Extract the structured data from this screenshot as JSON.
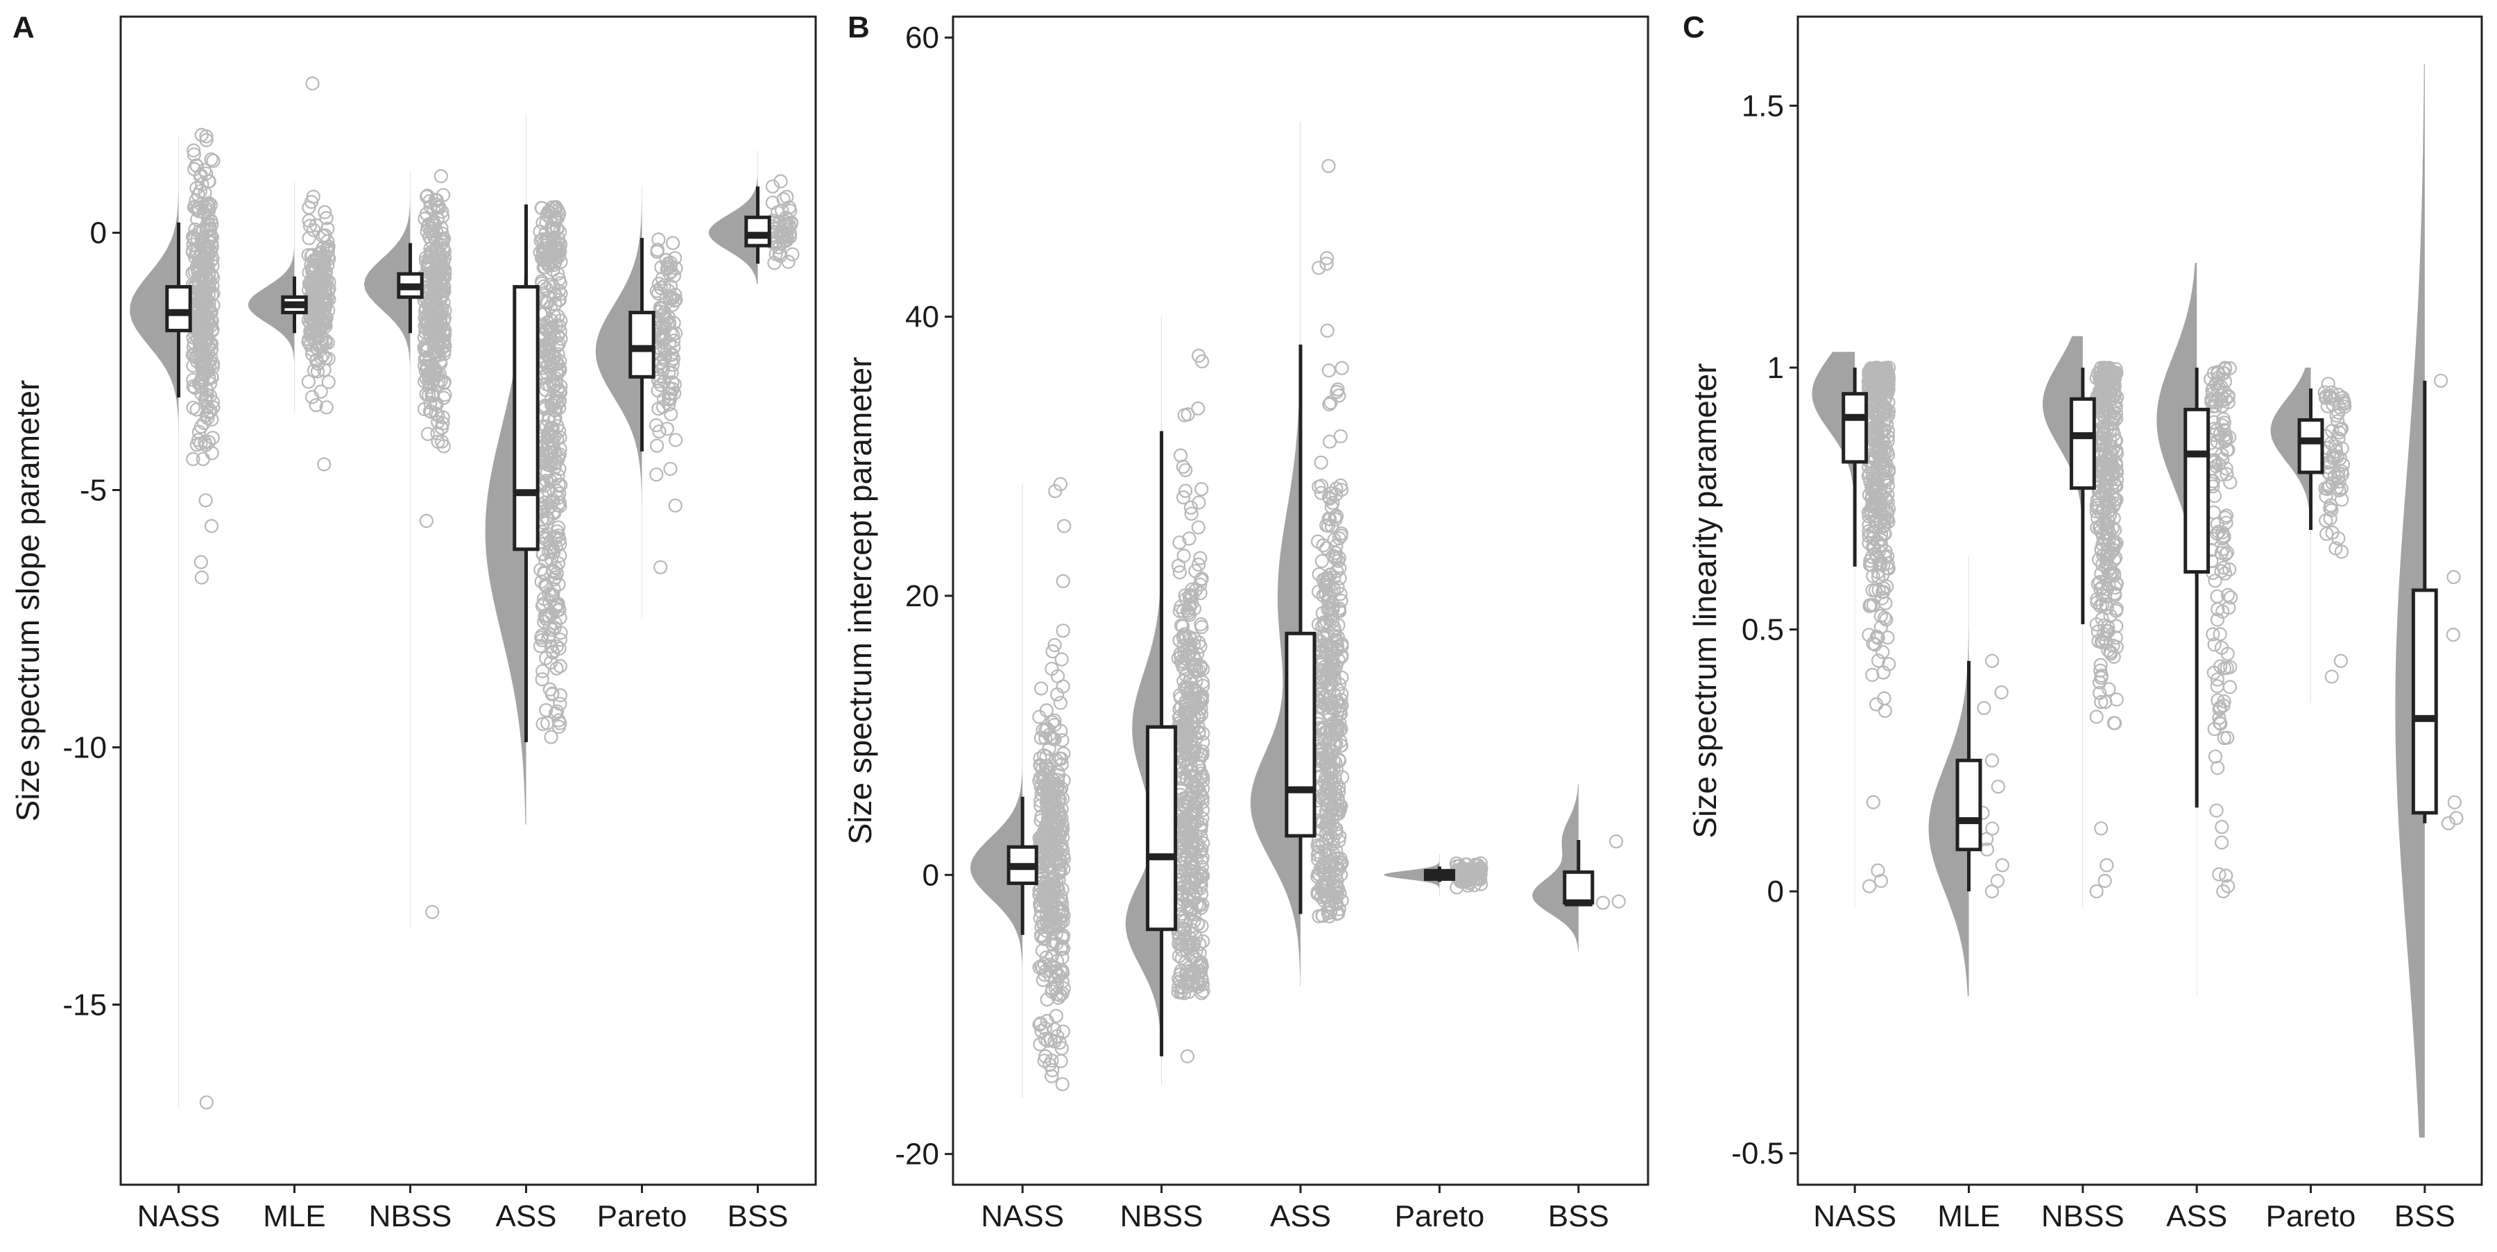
{
  "colors": {
    "violin_fill": "#a3a3a3",
    "point_stroke": "#b8b8b8",
    "box_stroke": "#222222",
    "box_fill": "#ffffff",
    "frame": "#222222"
  },
  "chart_data": [
    {
      "panel": "A",
      "type": "raincloud",
      "ylabel": "Size spectrum slope parameter",
      "ylim": [
        -18.5,
        4.2
      ],
      "yticks": [
        0,
        -5,
        -10,
        -15
      ],
      "categories": [
        "NASS",
        "MLE",
        "NBSS",
        "ASS",
        "Pareto",
        "BSS"
      ],
      "groups": [
        {
          "name": "NASS",
          "box": {
            "min": -3.2,
            "q1": -1.9,
            "median": -1.55,
            "q3": -1.05,
            "max": 0.2
          },
          "density": {
            "min": -17.0,
            "max": 1.9,
            "mode": -1.5,
            "spread": 0.7,
            "peak": 0.9
          },
          "points": {
            "count": 320,
            "low": -6.8,
            "high": 2.0,
            "center": -1.4,
            "sd": 1.3,
            "outliers": [
              -16.9,
              -6.7,
              -6.4,
              -5.7,
              -5.2,
              1.9,
              1.8,
              1.6,
              1.3
            ]
          }
        },
        {
          "name": "MLE",
          "box": {
            "min": -1.95,
            "q1": -1.55,
            "median": -1.4,
            "q3": -1.25,
            "max": -0.85
          },
          "density": {
            "min": -3.5,
            "max": 1.0,
            "mode": -1.4,
            "spread": 0.35,
            "peak": 0.85
          },
          "points": {
            "count": 220,
            "low": -3.4,
            "high": 0.7,
            "center": -1.4,
            "sd": 0.7,
            "outliers": [
              -4.5,
              2.9,
              0.7,
              0.6,
              0.4
            ]
          }
        },
        {
          "name": "NBSS",
          "box": {
            "min": -1.95,
            "q1": -1.25,
            "median": -1.05,
            "q3": -0.8,
            "max": -0.2
          },
          "density": {
            "min": -13.5,
            "max": 1.2,
            "mode": -1.0,
            "spread": 0.5,
            "peak": 0.85
          },
          "points": {
            "count": 300,
            "low": -4.6,
            "high": 0.8,
            "center": -1.6,
            "sd": 1.1,
            "outliers": [
              -13.2,
              -5.6,
              1.1,
              0.5,
              0.2
            ]
          }
        },
        {
          "name": "ASS",
          "box": {
            "min": -9.9,
            "q1": -6.15,
            "median": -5.05,
            "q3": -1.05,
            "max": 0.55
          },
          "density": {
            "min": -11.5,
            "max": 2.3,
            "mode": -5.8,
            "spread": 2.0,
            "peak": 0.75
          },
          "points": {
            "count": 380,
            "low": -9.9,
            "high": 0.5,
            "center": -3.5,
            "sd": 3.0,
            "outliers": [
              -9.8,
              -9.6,
              0.5,
              0.4
            ]
          }
        },
        {
          "name": "Pareto",
          "box": {
            "min": -4.25,
            "q1": -2.8,
            "median": -2.25,
            "q3": -1.55,
            "max": -0.1
          },
          "density": {
            "min": -7.5,
            "max": 0.9,
            "mode": -2.3,
            "spread": 0.9,
            "peak": 0.85
          },
          "points": {
            "count": 110,
            "low": -5.3,
            "high": -0.1,
            "center": -2.2,
            "sd": 1.0,
            "outliers": [
              -6.5,
              -5.3,
              -4.7
            ]
          }
        },
        {
          "name": "BSS",
          "box": {
            "min": -0.6,
            "q1": -0.25,
            "median": -0.05,
            "q3": 0.3,
            "max": 0.9
          },
          "density": {
            "min": -1.0,
            "max": 1.6,
            "mode": 0.0,
            "spread": 0.35,
            "peak": 0.9
          },
          "points": {
            "count": 50,
            "low": -0.6,
            "high": 1.0,
            "center": 0.0,
            "sd": 0.35,
            "outliers": [
              1.0,
              0.9
            ]
          }
        }
      ]
    },
    {
      "panel": "B",
      "type": "raincloud",
      "ylabel": "Size spectrum intercept parameter",
      "ylim": [
        -22.2,
        61.5
      ],
      "yticks": [
        60,
        40,
        20,
        0,
        -20
      ],
      "categories": [
        "NASS",
        "NBSS",
        "ASS",
        "Pareto",
        "BSS"
      ],
      "groups": [
        {
          "name": "NASS",
          "box": {
            "min": -4.3,
            "q1": -0.6,
            "median": 0.6,
            "q3": 2.0,
            "max": 5.6
          },
          "density": {
            "min": -16.0,
            "max": 28.0,
            "mode": 0.5,
            "spread": 2.2,
            "peak": 0.8
          },
          "points": {
            "count": 380,
            "low": -15.0,
            "high": 28.0,
            "center": 1.0,
            "sd": 6.0,
            "outliers": [
              -15.0,
              -13.0,
              28.0,
              27.5,
              25.0
            ]
          }
        },
        {
          "name": "NBSS",
          "box": {
            "min": -13.0,
            "q1": -3.9,
            "median": 1.3,
            "q3": 10.6,
            "max": 31.8
          },
          "density": {
            "min": -15.0,
            "max": 40.0,
            "mode": -3.5,
            "spread": 3.0,
            "peak": 0.55,
            "mode2": 10.5,
            "spread2": 4.0,
            "peak2": 0.45
          },
          "points": {
            "count": 480,
            "low": -8.5,
            "high": 37.0,
            "center": 5.0,
            "sd": 10.0,
            "outliers": [
              -13.0,
              37.2,
              36.8,
              33.0
            ]
          }
        },
        {
          "name": "ASS",
          "box": {
            "min": -2.8,
            "q1": 2.8,
            "median": 6.1,
            "q3": 17.3,
            "max": 38.0
          },
          "density": {
            "min": -8.0,
            "max": 54.0,
            "mode": 5.0,
            "spread": 4.0,
            "peak": 0.75,
            "mode2": 20.0,
            "spread2": 6.0,
            "peak2": 0.35
          },
          "points": {
            "count": 420,
            "low": -3.0,
            "high": 44.0,
            "center": 10.0,
            "sd": 10.0,
            "outliers": [
              50.8,
              44.2,
              43.8,
              43.5,
              39.0
            ]
          }
        },
        {
          "name": "Pareto",
          "box": {
            "min": -0.5,
            "q1": -0.3,
            "median": 0.0,
            "q3": 0.3,
            "max": 0.6
          },
          "density": {
            "min": -1.5,
            "max": 1.5,
            "mode": 0.0,
            "spread": 0.3,
            "peak": 0.85
          },
          "points": {
            "count": 80,
            "low": -1.3,
            "high": 1.0,
            "center": 0.0,
            "sd": 0.4,
            "outliers": []
          }
        },
        {
          "name": "BSS",
          "box": {
            "min": -2.0,
            "q1": -2.0,
            "median": -2.0,
            "q3": 0.2,
            "max": 2.5
          },
          "density": {
            "min": -5.5,
            "max": 6.5,
            "mode": -1.5,
            "spread": 1.3,
            "peak": 0.7,
            "mode2": 2.5,
            "spread2": 1.5,
            "peak2": 0.25
          },
          "points": {
            "count": 0,
            "low": -2.0,
            "high": 2.5,
            "center": 0.0,
            "sd": 1.0,
            "outliers": [
              2.4,
              -1.9,
              -2.0
            ]
          }
        }
      ]
    },
    {
      "panel": "C",
      "type": "raincloud",
      "ylabel": "Size spectrum linearity parameter",
      "ylim": [
        -0.56,
        1.67
      ],
      "yticks": [
        1.5,
        1.0,
        0.5,
        0.0,
        -0.5
      ],
      "categories": [
        "NASS",
        "MLE",
        "NBSS",
        "ASS",
        "Pareto",
        "BSS"
      ],
      "groups": [
        {
          "name": "NASS",
          "box": {
            "min": 0.62,
            "q1": 0.82,
            "median": 0.905,
            "q3": 0.95,
            "max": 1.0
          },
          "density": {
            "min": -0.03,
            "max": 1.03,
            "mode": 0.95,
            "spread": 0.07,
            "peak": 0.8
          },
          "points": {
            "count": 420,
            "low": 0.0,
            "high": 1.0,
            "center": 0.85,
            "sd": 0.2,
            "outliers": [
              0.01,
              0.02,
              0.04
            ]
          }
        },
        {
          "name": "MLE",
          "box": {
            "min": 0.0,
            "q1": 0.08,
            "median": 0.135,
            "q3": 0.25,
            "max": 0.44
          },
          "density": {
            "min": -0.2,
            "max": 0.64,
            "mode": 0.12,
            "spread": 0.12,
            "peak": 0.75
          },
          "points": {
            "count": 0,
            "low": 0.0,
            "high": 0.45,
            "center": 0.15,
            "sd": 0.12,
            "outliers": [
              0.44,
              0.38,
              0.35,
              0.25,
              0.2,
              0.15,
              0.12,
              0.1,
              0.08,
              0.05,
              0.02,
              0.0
            ]
          }
        },
        {
          "name": "NBSS",
          "box": {
            "min": 0.51,
            "q1": 0.77,
            "median": 0.87,
            "q3": 0.94,
            "max": 1.0
          },
          "density": {
            "min": -0.03,
            "max": 1.06,
            "mode": 0.93,
            "spread": 0.08,
            "peak": 0.75
          },
          "points": {
            "count": 360,
            "low": 0.0,
            "high": 1.0,
            "center": 0.8,
            "sd": 0.22,
            "outliers": [
              0.0,
              0.02,
              0.05
            ]
          }
        },
        {
          "name": "ASS",
          "box": {
            "min": 0.16,
            "q1": 0.61,
            "median": 0.835,
            "q3": 0.92,
            "max": 1.0
          },
          "density": {
            "min": -0.2,
            "max": 1.2,
            "mode": 0.9,
            "spread": 0.12,
            "peak": 0.75
          },
          "points": {
            "count": 130,
            "low": 0.0,
            "high": 1.0,
            "center": 0.75,
            "sd": 0.28,
            "outliers": [
              0.0,
              0.01,
              0.03
            ]
          }
        },
        {
          "name": "Pareto",
          "box": {
            "min": 0.69,
            "q1": 0.8,
            "median": 0.86,
            "q3": 0.9,
            "max": 0.96
          },
          "density": {
            "min": 0.36,
            "max": 1.0,
            "mode": 0.88,
            "spread": 0.06,
            "peak": 0.75
          },
          "points": {
            "count": 70,
            "low": 0.42,
            "high": 0.97,
            "center": 0.85,
            "sd": 0.1,
            "outliers": [
              0.41,
              0.44
            ]
          }
        },
        {
          "name": "BSS",
          "box": {
            "min": 0.13,
            "q1": 0.15,
            "median": 0.33,
            "q3": 0.575,
            "max": 0.975
          },
          "density": {
            "min": -0.47,
            "max": 1.58,
            "mode": 0.35,
            "spread": 0.45,
            "peak": 0.55
          },
          "points": {
            "count": 0,
            "low": 0.13,
            "high": 0.98,
            "center": 0.4,
            "sd": 0.2,
            "outliers": [
              0.975,
              0.6,
              0.49,
              0.17,
              0.14,
              0.13
            ]
          }
        }
      ]
    }
  ]
}
